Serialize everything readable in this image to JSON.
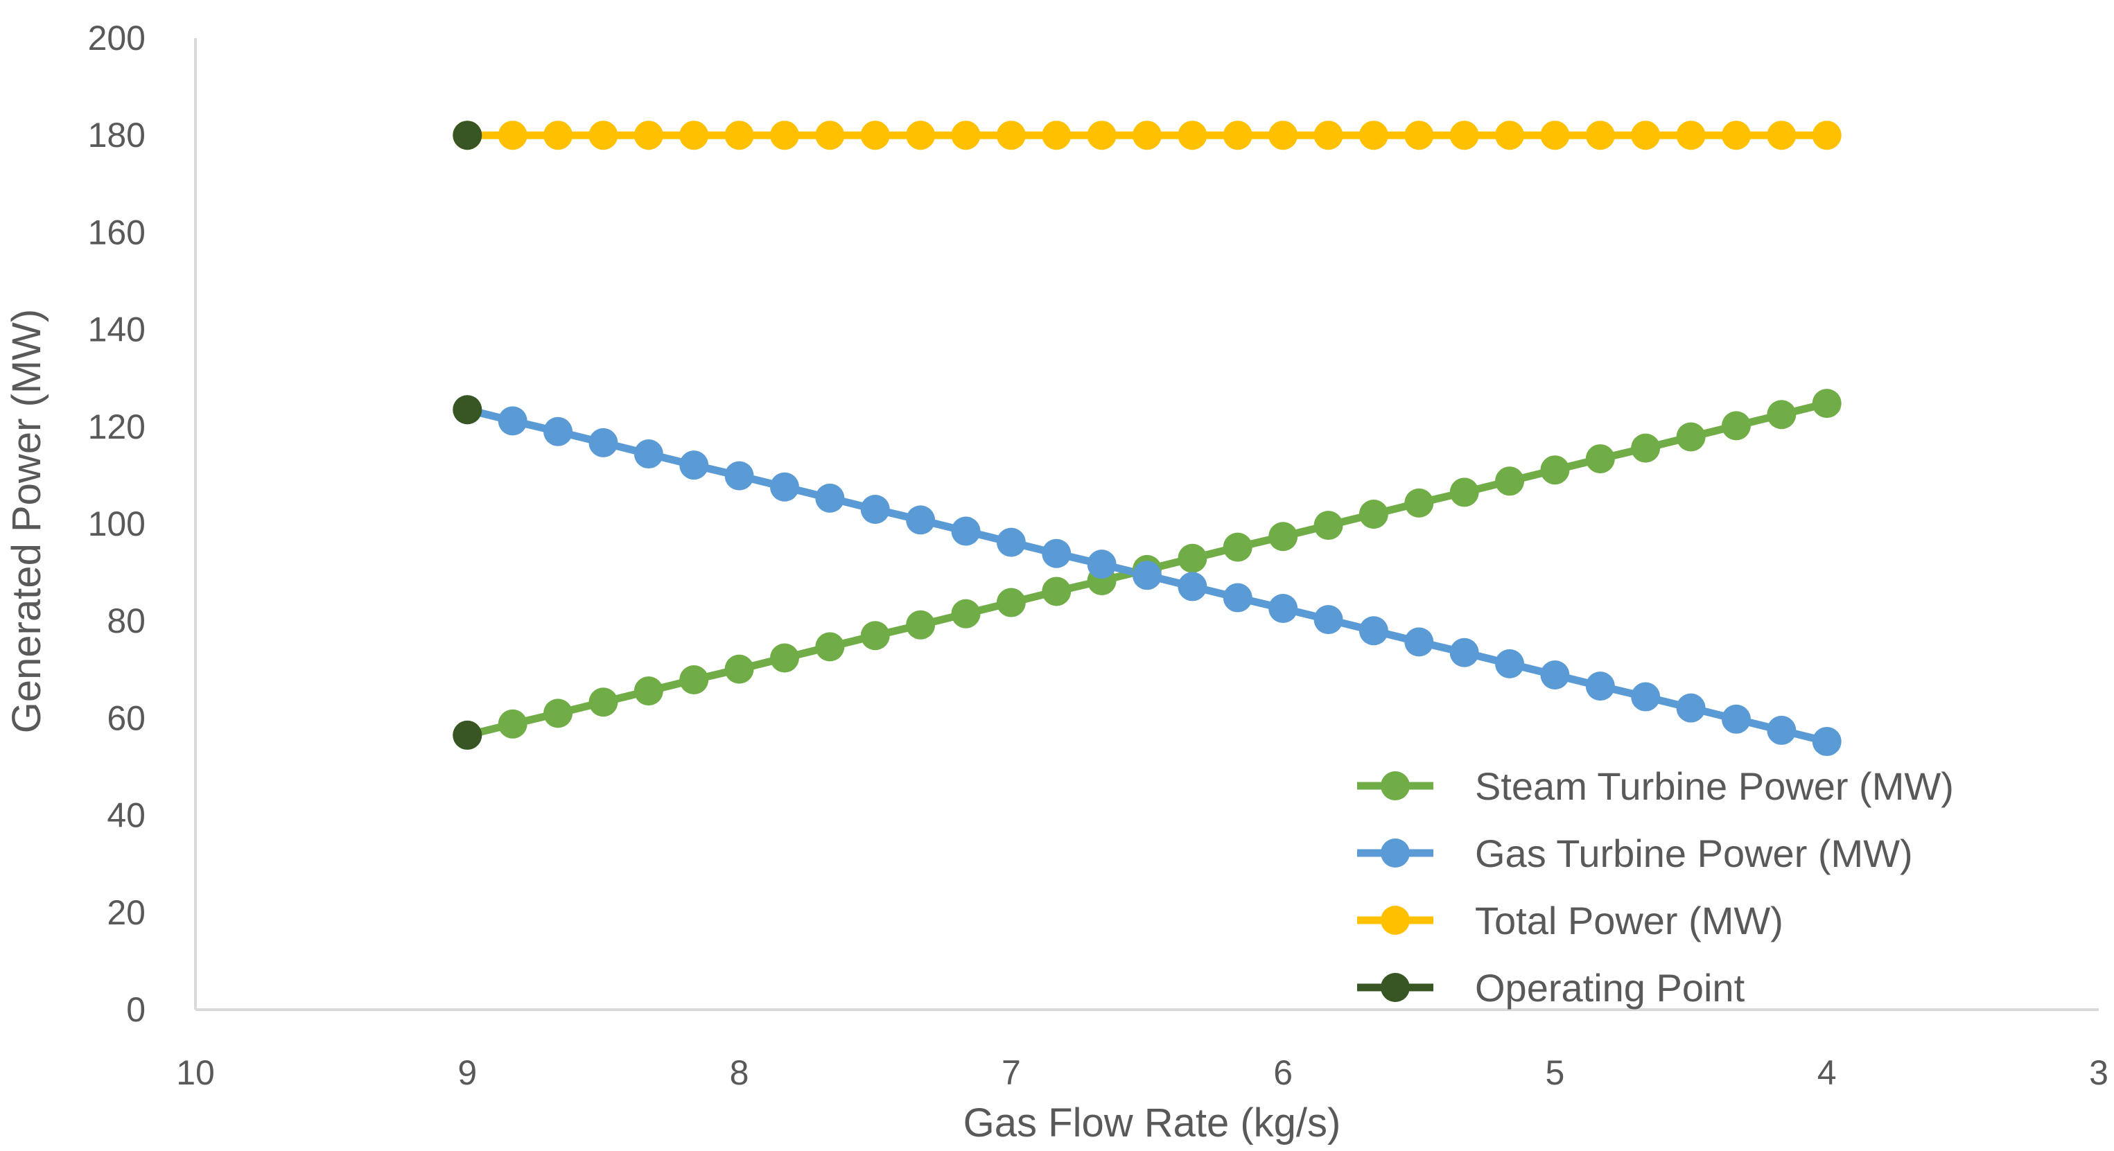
{
  "chart_data": {
    "type": "line",
    "title": "",
    "xlabel": "Gas Flow Rate (kg/s)",
    "ylabel": "Generated Power (MW)",
    "xlim": [
      10,
      3
    ],
    "ylim": [
      0,
      200
    ],
    "x_reversed": true,
    "xticks": [
      10,
      9,
      8,
      7,
      6,
      5,
      4,
      3
    ],
    "yticks": [
      0,
      20,
      40,
      60,
      80,
      100,
      120,
      140,
      160,
      180,
      200
    ],
    "legend_position": "bottom-right",
    "grid": false,
    "x": [
      9.0,
      8.8333,
      8.6667,
      8.5,
      8.3333,
      8.1667,
      8.0,
      7.8333,
      7.6667,
      7.5,
      7.3333,
      7.1667,
      7.0,
      6.8333,
      6.6667,
      6.5,
      6.3333,
      6.1667,
      6.0,
      5.8333,
      5.6667,
      5.5,
      5.3333,
      5.1667,
      5.0,
      4.8333,
      4.6667,
      4.5,
      4.3333,
      4.1667,
      4.0
    ],
    "series": [
      {
        "name": "Steam Turbine Power (MW)",
        "color": "#70AD47",
        "values": [
          56.5,
          58.8,
          61.0,
          63.3,
          65.6,
          67.9,
          70.1,
          72.4,
          74.7,
          77.0,
          79.2,
          81.5,
          83.8,
          86.1,
          88.3,
          90.6,
          92.9,
          95.2,
          97.4,
          99.7,
          102.0,
          104.3,
          106.5,
          108.8,
          111.1,
          113.4,
          115.6,
          117.9,
          120.2,
          122.5,
          124.8
        ]
      },
      {
        "name": "Gas Turbine Power (MW)",
        "color": "#5B9BD5",
        "values": [
          123.5,
          121.2,
          119.0,
          116.7,
          114.4,
          112.1,
          109.9,
          107.6,
          105.3,
          103.0,
          100.8,
          98.5,
          96.2,
          93.9,
          91.7,
          89.4,
          87.1,
          84.8,
          82.6,
          80.3,
          78.0,
          75.7,
          73.5,
          71.2,
          68.9,
          66.6,
          64.4,
          62.1,
          59.8,
          57.5,
          55.2
        ]
      },
      {
        "name": "Total Power (MW)",
        "color": "#FFC000",
        "values": [
          180,
          180,
          180,
          180,
          180,
          180,
          180,
          180,
          180,
          180,
          180,
          180,
          180,
          180,
          180,
          180,
          180,
          180,
          180,
          180,
          180,
          180,
          180,
          180,
          180,
          180,
          180,
          180,
          180,
          180,
          180
        ]
      },
      {
        "name": "Operating Point",
        "color": "#375623",
        "points": [
          {
            "x": 9,
            "y": 180
          },
          {
            "x": 9,
            "y": 123.5
          },
          {
            "x": 9,
            "y": 56.5
          }
        ]
      }
    ]
  }
}
